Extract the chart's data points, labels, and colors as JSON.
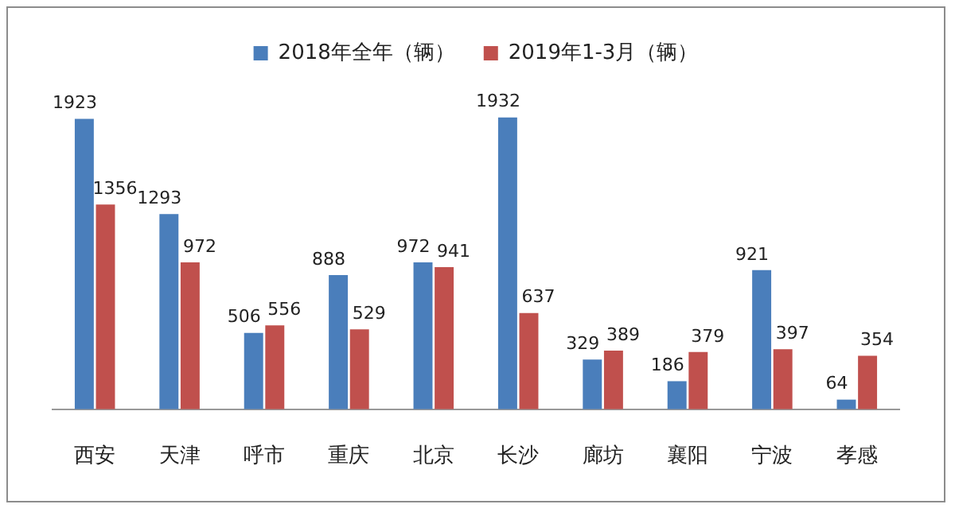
{
  "chart_data": {
    "type": "bar",
    "categories": [
      "西安",
      "天津",
      "呼市",
      "重庆",
      "北京",
      "长沙",
      "廊坊",
      "襄阳",
      "宁波",
      "孝感"
    ],
    "series": [
      {
        "name": "2018年全年（辆）",
        "color": "#4a7ebb",
        "values": [
          1923,
          1293,
          506,
          888,
          972,
          1932,
          329,
          186,
          921,
          64
        ]
      },
      {
        "name": "2019年1-3月（辆）",
        "color": "#c0504d",
        "values": [
          1356,
          972,
          556,
          529,
          941,
          637,
          389,
          379,
          397,
          354
        ]
      }
    ],
    "data_labels": true,
    "legend": "top",
    "grid": false
  }
}
